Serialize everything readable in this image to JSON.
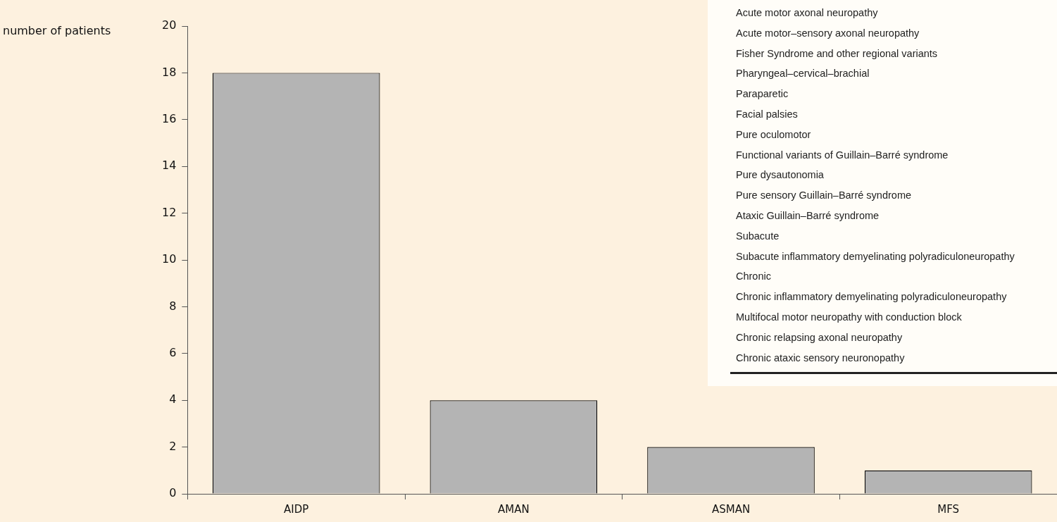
{
  "chart_data": {
    "type": "bar",
    "ylabel": "number of patients",
    "categories": [
      "AIDP",
      "AMAN",
      "ASMAN",
      "MFS"
    ],
    "values": [
      18,
      4,
      2,
      1
    ],
    "color": "#b4b4b4",
    "ylim": [
      0,
      20
    ],
    "yticks": [
      0,
      2,
      4,
      6,
      8,
      10,
      12,
      14,
      16,
      18,
      20
    ],
    "grid": false,
    "legend": false,
    "annotations": [
      "Acute motor axonal neuropathy",
      "Acute motor–sensory axonal neuropathy",
      "Fisher Syndrome and other regional variants",
      "Pharyngeal–cervical–brachial",
      "Paraparetic",
      "Facial palsies",
      "Pure oculomotor",
      "Functional variants of Guillain–Barré syndrome",
      "Pure dysautonomia",
      "Pure sensory Guillain–Barré syndrome",
      "Ataxic Guillain–Barré syndrome",
      "Subacute",
      "Subacute inflammatory demyelinating polyradiculoneuropathy",
      "Chronic",
      "Chronic inflammatory demyelinating polyradiculoneuropathy",
      "Multifocal motor neuropathy with conduction block",
      "Chronic relapsing axonal neuropathy",
      "Chronic ataxic sensory neuronopathy"
    ]
  }
}
